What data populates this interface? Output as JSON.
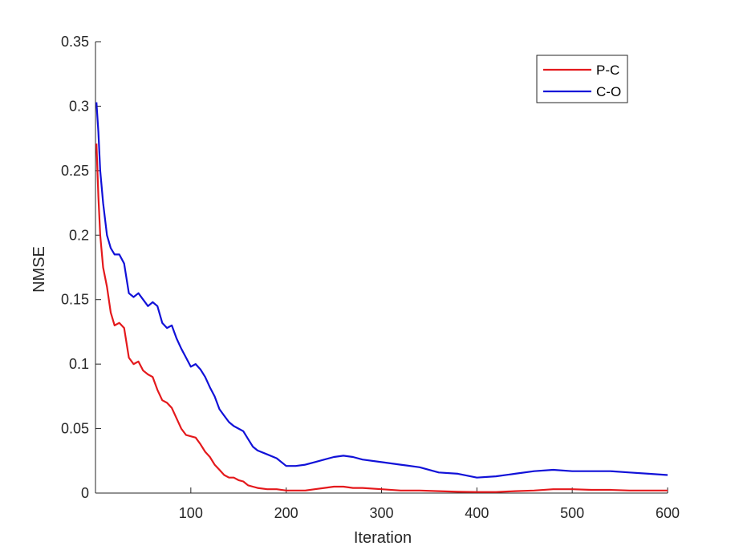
{
  "chart_data": {
    "type": "line",
    "xlabel": "Iteration",
    "ylabel": "NMSE",
    "xlim": [
      0,
      600
    ],
    "ylim": [
      0,
      0.35
    ],
    "xticks": [
      100,
      200,
      300,
      400,
      500,
      600
    ],
    "yticks": [
      0,
      0.05,
      0.1,
      0.15,
      0.2,
      0.25,
      0.3,
      0.35
    ],
    "xtick_labels": [
      "100",
      "200",
      "300",
      "400",
      "500",
      "600"
    ],
    "ytick_labels": [
      "0",
      "0.05",
      "0.1",
      "0.15",
      "0.2",
      "0.25",
      "0.3",
      "0.35"
    ],
    "grid": false,
    "legend_position": "top-right",
    "series": [
      {
        "name": "P-C",
        "color": "#e4191c",
        "x": [
          1,
          3,
          5,
          8,
          12,
          16,
          20,
          25,
          30,
          35,
          40,
          45,
          50,
          55,
          60,
          65,
          70,
          75,
          80,
          85,
          90,
          95,
          100,
          105,
          110,
          115,
          120,
          125,
          130,
          135,
          140,
          145,
          150,
          155,
          160,
          165,
          170,
          180,
          190,
          200,
          210,
          220,
          230,
          240,
          250,
          260,
          270,
          280,
          300,
          320,
          340,
          360,
          380,
          400,
          420,
          440,
          460,
          480,
          500,
          520,
          540,
          560,
          580,
          600
        ],
        "y": [
          0.271,
          0.23,
          0.2,
          0.175,
          0.16,
          0.14,
          0.13,
          0.132,
          0.128,
          0.105,
          0.1,
          0.102,
          0.095,
          0.092,
          0.09,
          0.08,
          0.072,
          0.07,
          0.066,
          0.058,
          0.05,
          0.045,
          0.044,
          0.043,
          0.038,
          0.032,
          0.028,
          0.022,
          0.018,
          0.014,
          0.012,
          0.012,
          0.01,
          0.009,
          0.006,
          0.005,
          0.004,
          0.003,
          0.003,
          0.002,
          0.002,
          0.002,
          0.003,
          0.004,
          0.005,
          0.005,
          0.004,
          0.004,
          0.003,
          0.002,
          0.002,
          0.0015,
          0.001,
          0.0008,
          0.0008,
          0.0015,
          0.002,
          0.003,
          0.003,
          0.0025,
          0.0025,
          0.002,
          0.002,
          0.002
        ]
      },
      {
        "name": "C-O",
        "color": "#1111d8",
        "x": [
          1,
          3,
          5,
          8,
          12,
          16,
          20,
          25,
          30,
          35,
          40,
          45,
          50,
          55,
          60,
          65,
          70,
          75,
          80,
          85,
          90,
          95,
          100,
          105,
          110,
          115,
          120,
          125,
          130,
          135,
          140,
          145,
          150,
          155,
          160,
          165,
          170,
          180,
          190,
          200,
          210,
          220,
          230,
          240,
          250,
          260,
          270,
          280,
          300,
          320,
          340,
          360,
          380,
          400,
          420,
          440,
          460,
          480,
          500,
          520,
          540,
          560,
          580,
          600
        ],
        "y": [
          0.303,
          0.28,
          0.25,
          0.225,
          0.2,
          0.19,
          0.185,
          0.185,
          0.178,
          0.155,
          0.152,
          0.155,
          0.15,
          0.145,
          0.148,
          0.145,
          0.132,
          0.128,
          0.13,
          0.12,
          0.112,
          0.105,
          0.098,
          0.1,
          0.096,
          0.09,
          0.082,
          0.075,
          0.065,
          0.06,
          0.055,
          0.052,
          0.05,
          0.048,
          0.042,
          0.036,
          0.033,
          0.03,
          0.027,
          0.021,
          0.021,
          0.022,
          0.024,
          0.026,
          0.028,
          0.029,
          0.028,
          0.026,
          0.024,
          0.022,
          0.02,
          0.016,
          0.015,
          0.012,
          0.013,
          0.015,
          0.017,
          0.018,
          0.017,
          0.017,
          0.017,
          0.016,
          0.015,
          0.014
        ]
      }
    ]
  }
}
